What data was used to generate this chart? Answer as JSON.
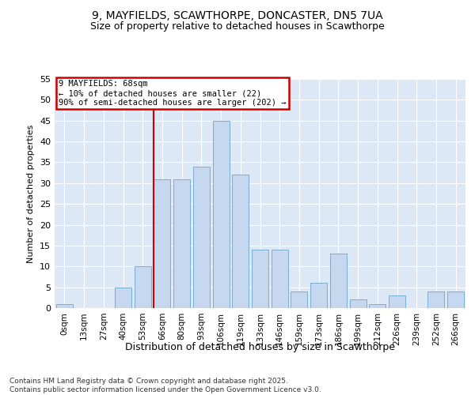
{
  "title1": "9, MAYFIELDS, SCAWTHORPE, DONCASTER, DN5 7UA",
  "title2": "Size of property relative to detached houses in Scawthorpe",
  "xlabel": "Distribution of detached houses by size in Scawthorpe",
  "ylabel": "Number of detached properties",
  "categories": [
    "0sqm",
    "13sqm",
    "27sqm",
    "40sqm",
    "53sqm",
    "66sqm",
    "80sqm",
    "93sqm",
    "106sqm",
    "119sqm",
    "133sqm",
    "146sqm",
    "159sqm",
    "173sqm",
    "186sqm",
    "199sqm",
    "212sqm",
    "226sqm",
    "239sqm",
    "252sqm",
    "266sqm"
  ],
  "values": [
    1,
    0,
    0,
    5,
    10,
    31,
    31,
    34,
    45,
    32,
    14,
    14,
    4,
    6,
    13,
    2,
    1,
    3,
    0,
    4,
    4
  ],
  "bar_color": "#c5d8f0",
  "bar_edge_color": "#7aadd4",
  "vline_color": "#cc0000",
  "vline_position": 5.0,
  "annotation_text": "9 MAYFIELDS: 68sqm\n← 10% of detached houses are smaller (22)\n90% of semi-detached houses are larger (202) →",
  "annotation_box_facecolor": "#ffffff",
  "annotation_box_edgecolor": "#cc0000",
  "plot_bg_color": "#dce8f5",
  "fig_bg_color": "#ffffff",
  "grid_color": "#ffffff",
  "ylim": [
    0,
    55
  ],
  "yticks": [
    0,
    5,
    10,
    15,
    20,
    25,
    30,
    35,
    40,
    45,
    50,
    55
  ],
  "footer": "Contains HM Land Registry data © Crown copyright and database right 2025.\nContains public sector information licensed under the Open Government Licence v3.0."
}
